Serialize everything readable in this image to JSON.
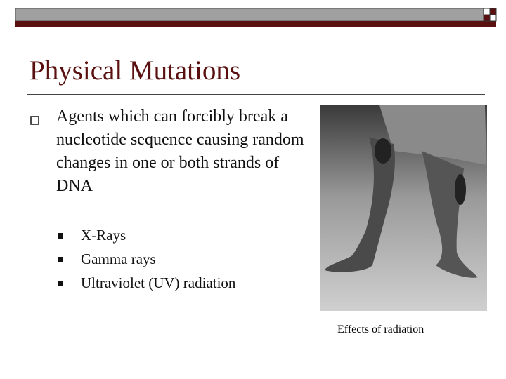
{
  "title": "Physical Mutations",
  "bullets": [
    {
      "text": "Agents which can forcibly break a nucleotide sequence causing random changes in one or both strands of DNA",
      "sub": [
        "X-Rays",
        "Gamma rays",
        "Ultraviolet (UV) radiation"
      ]
    }
  ],
  "image_caption": "Effects of radiation"
}
